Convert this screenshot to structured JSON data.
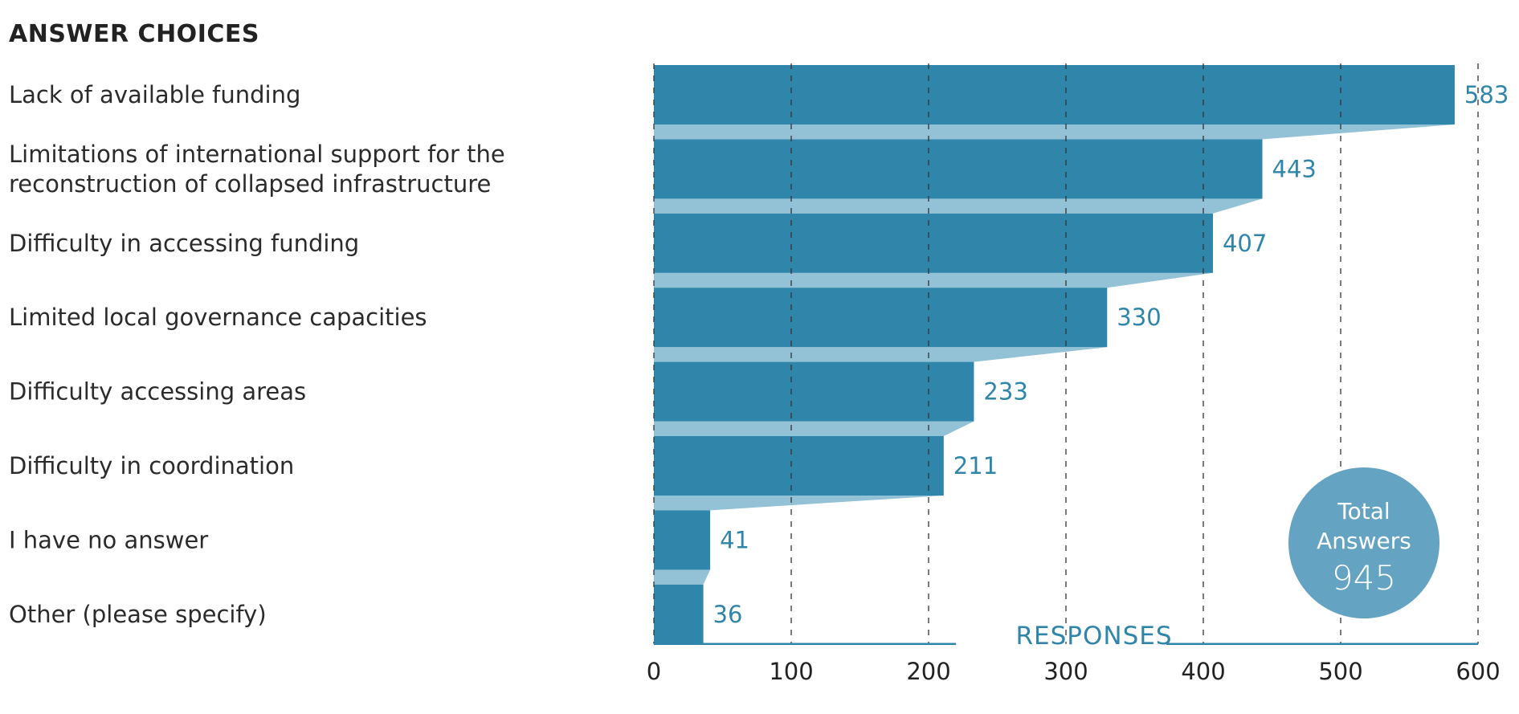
{
  "header": {
    "title": "ANSWER CHOICES"
  },
  "total": {
    "line1": "Total",
    "line2": "Answers",
    "value": "945"
  },
  "colors": {
    "bar": "#3085ab",
    "connector": "#93c1d6",
    "circle": "#64a3c1",
    "label": "#2f85aa",
    "grid": "#333333"
  },
  "chart_data": {
    "type": "bar",
    "orientation": "horizontal",
    "categories": [
      [
        "Lack of available funding"
      ],
      [
        "Limitations of international support for the",
        "reconstruction of collapsed infrastructure"
      ],
      [
        "Difficulty in accessing funding"
      ],
      [
        "Limited local governance capacities"
      ],
      [
        "Difficulty accessing areas"
      ],
      [
        "Difficulty in coordination"
      ],
      [
        "I have no answer"
      ],
      [
        "Other (please specify)"
      ]
    ],
    "values": [
      583,
      443,
      407,
      330,
      233,
      211,
      41,
      36
    ],
    "xlabel": "RESPONSES",
    "xlim": [
      0,
      600
    ],
    "xticks": [
      0,
      100,
      200,
      300,
      400,
      500,
      600
    ],
    "grid": true
  }
}
